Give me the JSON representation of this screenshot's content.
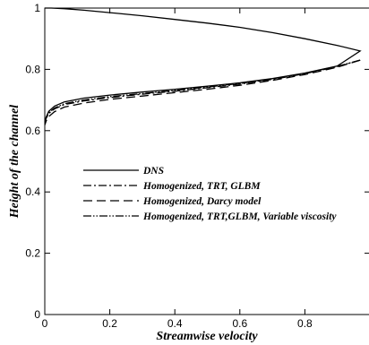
{
  "chart_data": {
    "type": "line",
    "xlabel": "Streamwise velocity",
    "ylabel": "Height of the channel",
    "xlim": [
      0,
      1
    ],
    "ylim": [
      0,
      1
    ],
    "x_ticks": [
      "0",
      "0.2",
      "0.4",
      "0.6",
      "0.8"
    ],
    "y_ticks": [
      "0",
      "0.2",
      "0.4",
      "0.6",
      "0.8",
      "1"
    ],
    "x_tick_values": [
      0,
      0.2,
      0.4,
      0.6,
      0.8
    ],
    "y_tick_values": [
      0,
      0.2,
      0.4,
      0.6,
      0.8,
      1
    ],
    "grid": false,
    "legend_position": "center-left",
    "series": [
      {
        "name": "DNS",
        "style": "solid",
        "x": [
          0.0,
          0.005,
          0.02,
          0.06,
          0.12,
          0.2,
          0.3,
          0.4,
          0.5,
          0.6,
          0.7,
          0.8,
          0.9,
          0.97,
          0.9,
          0.8,
          0.7,
          0.6,
          0.5,
          0.4,
          0.3,
          0.2,
          0.12,
          0.06,
          0.03,
          0.012,
          0.004,
          0.0
        ],
        "y": [
          1.0,
          1.0,
          1.0,
          0.998,
          0.993,
          0.985,
          0.975,
          0.963,
          0.951,
          0.937,
          0.92,
          0.9,
          0.878,
          0.86,
          0.811,
          0.788,
          0.77,
          0.756,
          0.745,
          0.735,
          0.726,
          0.716,
          0.706,
          0.694,
          0.68,
          0.663,
          0.644,
          0.625
        ]
      },
      {
        "name": "Homogenized, TRT, GLBM",
        "style": "dashdot",
        "x": [
          0.97,
          0.9,
          0.8,
          0.7,
          0.6,
          0.5,
          0.4,
          0.3,
          0.2,
          0.12,
          0.06,
          0.03,
          0.012,
          0.004,
          0.0
        ],
        "y": [
          0.83,
          0.809,
          0.786,
          0.767,
          0.752,
          0.74,
          0.729,
          0.719,
          0.708,
          0.697,
          0.685,
          0.671,
          0.656,
          0.64,
          0.625
        ]
      },
      {
        "name": "Homogenized, Darcy model",
        "style": "dashed",
        "x": [
          0.97,
          0.9,
          0.8,
          0.7,
          0.6,
          0.5,
          0.4,
          0.3,
          0.2,
          0.12,
          0.06,
          0.03,
          0.012,
          0.004,
          0.0
        ],
        "y": [
          0.83,
          0.807,
          0.783,
          0.764,
          0.748,
          0.735,
          0.724,
          0.713,
          0.702,
          0.69,
          0.677,
          0.662,
          0.646,
          0.631,
          0.618
        ]
      },
      {
        "name": "Homogenized, TRT,GLBM, Variable viscosity",
        "style": "dashdotdot",
        "x": [
          0.97,
          0.9,
          0.8,
          0.7,
          0.6,
          0.5,
          0.4,
          0.3,
          0.2,
          0.12,
          0.06,
          0.03,
          0.012,
          0.004,
          0.0
        ],
        "y": [
          0.83,
          0.81,
          0.787,
          0.769,
          0.754,
          0.742,
          0.731,
          0.721,
          0.711,
          0.7,
          0.688,
          0.674,
          0.658,
          0.642,
          0.628
        ]
      }
    ]
  }
}
